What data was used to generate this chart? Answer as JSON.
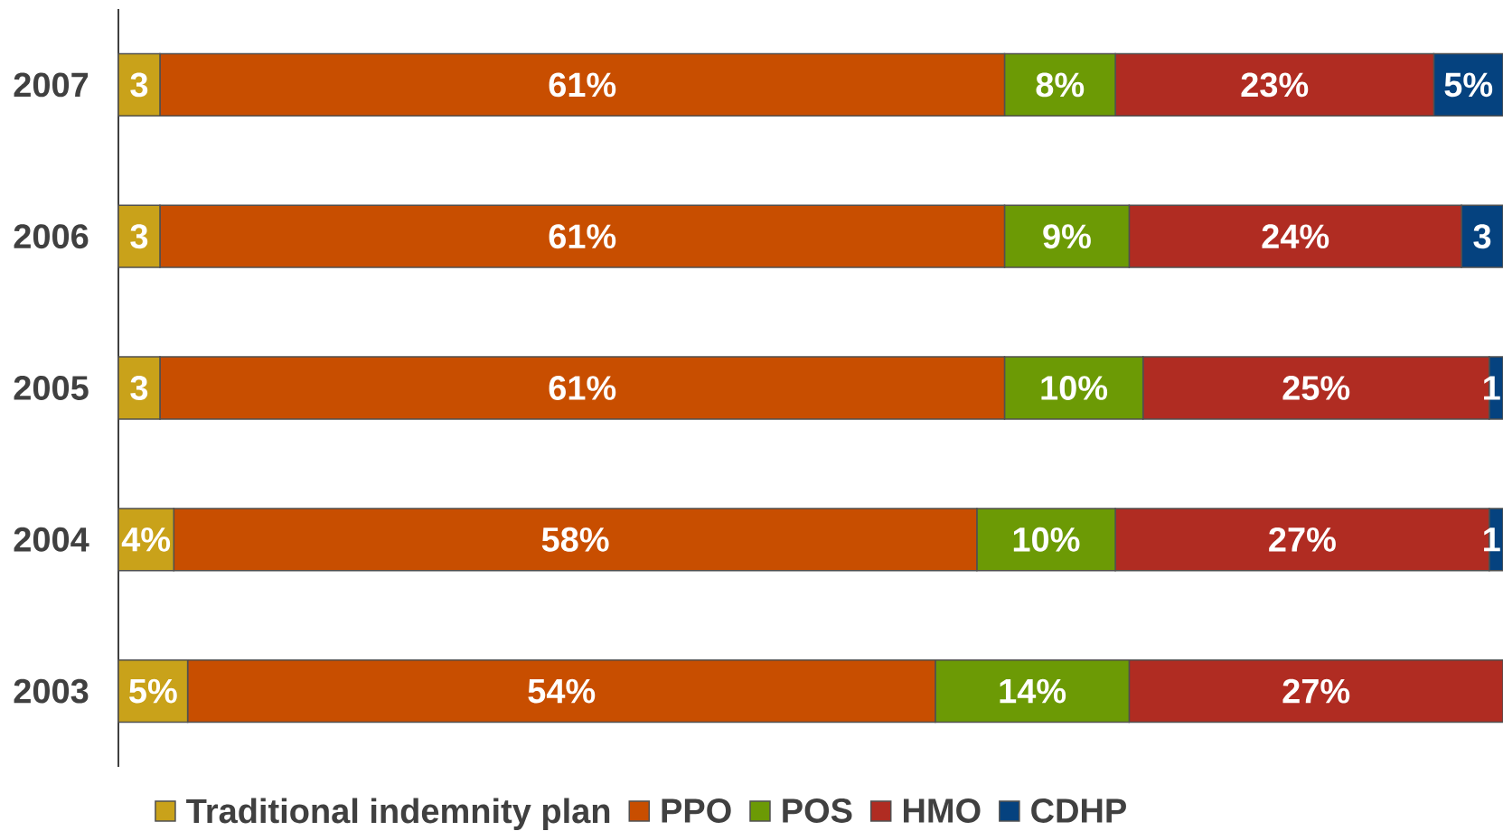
{
  "chart_data": {
    "type": "bar",
    "orientation": "horizontal",
    "stacked": true,
    "categories": [
      "2007",
      "2006",
      "2005",
      "2004",
      "2003"
    ],
    "series": [
      {
        "name": "Traditional indemnity plan",
        "color": "#c9a21a",
        "values": [
          3,
          3,
          3,
          4,
          5
        ],
        "value_labels": [
          "3",
          "3",
          "3",
          "4%",
          "5%"
        ]
      },
      {
        "name": "PPO",
        "color": "#c84e00",
        "values": [
          61,
          61,
          61,
          58,
          54
        ],
        "value_labels": [
          "61%",
          "61%",
          "61%",
          "58%",
          "54%"
        ]
      },
      {
        "name": "POS",
        "color": "#6c9a05",
        "values": [
          8,
          9,
          10,
          10,
          14
        ],
        "value_labels": [
          "8%",
          "9%",
          "10%",
          "10%",
          "14%"
        ]
      },
      {
        "name": "HMO",
        "color": "#b02c22",
        "values": [
          23,
          24,
          25,
          27,
          27
        ],
        "value_labels": [
          "23%",
          "24%",
          "25%",
          "27%",
          "27%"
        ]
      },
      {
        "name": "CDHP",
        "color": "#05427f",
        "values": [
          5,
          3,
          1,
          1,
          null
        ],
        "value_labels": [
          "5%",
          "3",
          "1",
          "1",
          null
        ]
      }
    ],
    "tick_labels": "y",
    "legend": "bottom"
  }
}
